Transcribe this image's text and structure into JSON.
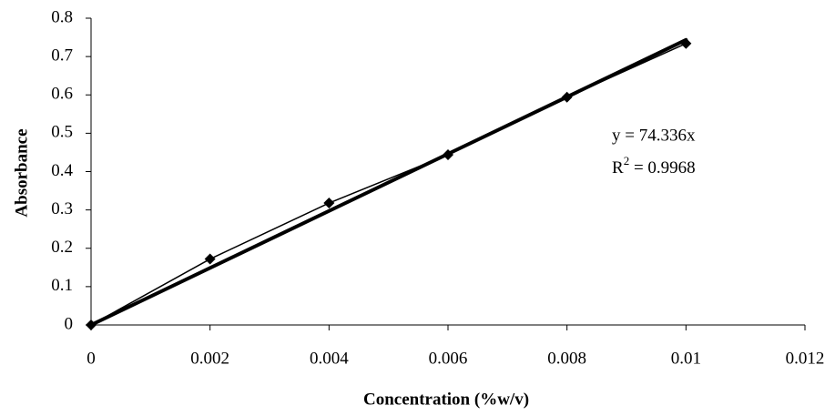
{
  "chart_data": {
    "type": "scatter",
    "x_label": "Concentration (%w/v)",
    "y_label": "Absorbance",
    "x": [
      0,
      0.002,
      0.004,
      0.006,
      0.008,
      0.01
    ],
    "series": [
      {
        "color": "#000000",
        "values": [
          0,
          0.172,
          0.318,
          0.444,
          0.594,
          0.734
        ]
      }
    ],
    "trendline": {
      "slope": 74.336,
      "label": "y = 74.336x",
      "r2": {
        "base": "R",
        "sup": "2",
        "text": " = 0.9968"
      }
    },
    "xlim": [
      0,
      0.012
    ],
    "xticks": [
      0,
      0.002,
      0.004,
      0.006,
      0.008,
      0.01,
      0.012
    ],
    "ylim": [
      0,
      0.8
    ],
    "yticks": [
      0,
      0.1,
      0.2,
      0.3,
      0.4,
      0.5,
      0.6,
      0.7,
      0.8
    ],
    "grid": false
  }
}
